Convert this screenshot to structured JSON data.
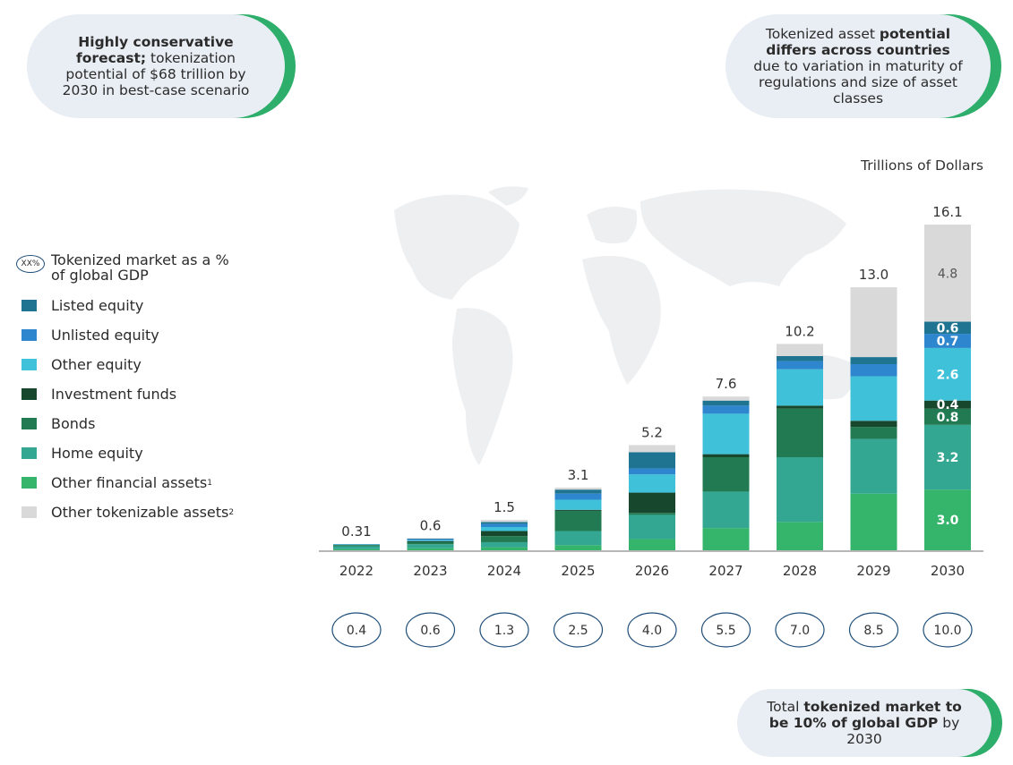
{
  "callouts": {
    "top_left": {
      "bold": "Highly conservative forecast;",
      "text": " tokenization potential of $68 trillion by 2030 in best-case scenario"
    },
    "top_right": {
      "pre": "Tokenized asset ",
      "bold": "potential differs across countries",
      "post": " due to variation in maturity of regulations and size of asset classes"
    },
    "bottom_right": {
      "pre": "Total ",
      "bold": "tokenized market to be 10% of global GDP",
      "post": " by 2030"
    }
  },
  "unit_label": "Trillions of Dollars",
  "legend": {
    "gdp_badge": "XX%",
    "gdp_label": "Tokenized market as a % of global GDP",
    "items": [
      {
        "label": "Listed equity",
        "color": "#1f7591"
      },
      {
        "label": "Unlisted equity",
        "color": "#2e86cf"
      },
      {
        "label": "Other equity",
        "color": "#3fc1d9"
      },
      {
        "label": "Investment funds",
        "color": "#17472d"
      },
      {
        "label": "Bonds",
        "color": "#217a52"
      },
      {
        "label": "Home equity",
        "color": "#34a792"
      },
      {
        "label": "Other financial assets",
        "sup": "1",
        "color": "#35b56b"
      },
      {
        "label": "Other tokenizable assets",
        "sup": "2",
        "color": "#d9d9d9"
      }
    ]
  },
  "chart_data": {
    "type": "bar",
    "stacked": true,
    "categories": [
      "2022",
      "2023",
      "2024",
      "2025",
      "2026",
      "2027",
      "2028",
      "2029",
      "2030"
    ],
    "totals": [
      "0.31",
      "0.6",
      "1.5",
      "3.1",
      "5.2",
      "7.6",
      "10.2",
      "13.0",
      "16.1"
    ],
    "gdp_share": [
      "0.4",
      "0.6",
      "1.3",
      "2.5",
      "4.0",
      "5.5",
      "7.0",
      "8.5",
      "10.0"
    ],
    "ylim": [
      0,
      16.1
    ],
    "series": [
      {
        "name": "Other financial assets",
        "color": "#35b56b",
        "values": [
          0.05,
          0.1,
          0.15,
          0.25,
          0.55,
          1.1,
          1.4,
          2.8,
          3.0
        ],
        "labels": [
          "",
          "",
          "",
          "",
          "",
          "",
          "",
          "",
          "3.0"
        ]
      },
      {
        "name": "Home equity",
        "color": "#34a792",
        "values": [
          0.15,
          0.2,
          0.25,
          0.7,
          1.2,
          1.8,
          3.2,
          2.7,
          3.2
        ],
        "labels": [
          "",
          "",
          "",
          "",
          "",
          "",
          "",
          "",
          "3.2"
        ]
      },
      {
        "name": "Bonds",
        "color": "#217a52",
        "values": [
          0.04,
          0.1,
          0.3,
          1.0,
          0.1,
          1.7,
          2.4,
          0.6,
          0.8
        ],
        "labels": [
          "",
          "",
          "",
          "",
          "",
          "",
          "",
          "",
          "0.8"
        ]
      },
      {
        "name": "Investment funds",
        "color": "#17472d",
        "values": [
          0.02,
          0.05,
          0.25,
          0.05,
          1.0,
          0.15,
          0.15,
          0.3,
          0.4
        ],
        "labels": [
          "",
          "",
          "",
          "",
          "",
          "",
          "",
          "",
          "0.4"
        ]
      },
      {
        "name": "Other equity",
        "color": "#3fc1d9",
        "values": [
          0.03,
          0.05,
          0.2,
          0.5,
          0.9,
          2.0,
          1.8,
          2.2,
          2.6
        ],
        "labels": [
          "",
          "",
          "",
          "",
          "",
          "",
          "",
          "",
          "2.6"
        ]
      },
      {
        "name": "Unlisted equity",
        "color": "#2e86cf",
        "values": [
          0.01,
          0.05,
          0.15,
          0.3,
          0.3,
          0.4,
          0.4,
          0.6,
          0.7
        ],
        "labels": [
          "",
          "",
          "",
          "",
          "",
          "",
          "",
          "",
          "0.7"
        ]
      },
      {
        "name": "Listed equity",
        "color": "#1f7591",
        "values": [
          0.01,
          0.03,
          0.1,
          0.2,
          0.8,
          0.25,
          0.25,
          0.35,
          0.6
        ],
        "labels": [
          "",
          "",
          "",
          "",
          "",
          "",
          "",
          "",
          "0.6"
        ]
      },
      {
        "name": "Other tokenizable assets",
        "color": "#d9d9d9",
        "values": [
          0.0,
          0.02,
          0.1,
          0.1,
          0.35,
          0.2,
          0.6,
          3.45,
          4.8
        ],
        "labels": [
          "",
          "",
          "",
          "",
          "",
          "",
          "",
          "",
          "4.8"
        ]
      }
    ]
  }
}
